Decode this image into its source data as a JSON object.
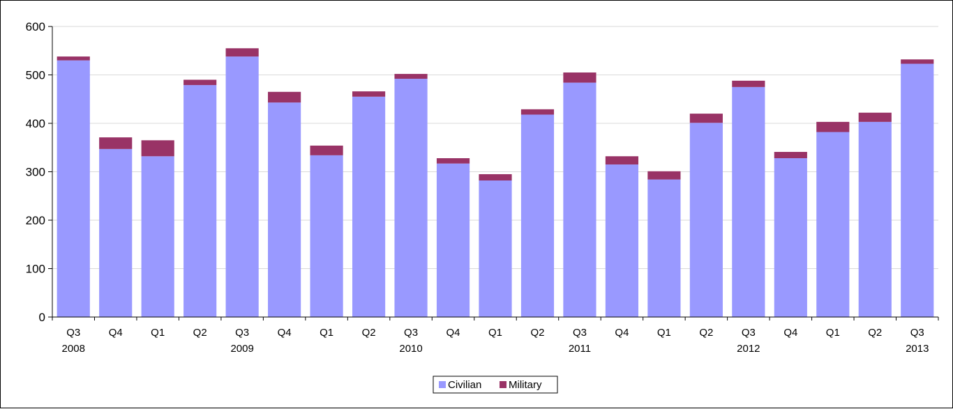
{
  "chart_data": {
    "type": "bar",
    "stacked": true,
    "categories": [
      "Q3",
      "Q4",
      "Q1",
      "Q2",
      "Q3",
      "Q4",
      "Q1",
      "Q2",
      "Q3",
      "Q4",
      "Q1",
      "Q2",
      "Q3",
      "Q4",
      "Q1",
      "Q2",
      "Q3",
      "Q4",
      "Q1",
      "Q2",
      "Q3"
    ],
    "year_labels": [
      "2008",
      "",
      "",
      "",
      "2009",
      "",
      "",
      "",
      "2010",
      "",
      "",
      "",
      "2011",
      "",
      "",
      "",
      "2012",
      "",
      "",
      "",
      "2013"
    ],
    "series": [
      {
        "name": "Civilian",
        "color": "#9999ff",
        "values": [
          530,
          347,
          332,
          479,
          538,
          443,
          334,
          455,
          492,
          317,
          282,
          418,
          484,
          315,
          284,
          401,
          475,
          328,
          382,
          403,
          523
        ]
      },
      {
        "name": "Military",
        "color": "#993366",
        "values": [
          8,
          24,
          33,
          11,
          17,
          22,
          20,
          11,
          10,
          11,
          13,
          11,
          21,
          17,
          17,
          19,
          13,
          13,
          21,
          19,
          9
        ]
      }
    ],
    "ylim": [
      0,
      600
    ],
    "yticks": [
      0,
      100,
      200,
      300,
      400,
      500,
      600
    ],
    "grid": true,
    "legend_position": "bottom-center",
    "title": "",
    "xlabel": "",
    "ylabel": ""
  }
}
